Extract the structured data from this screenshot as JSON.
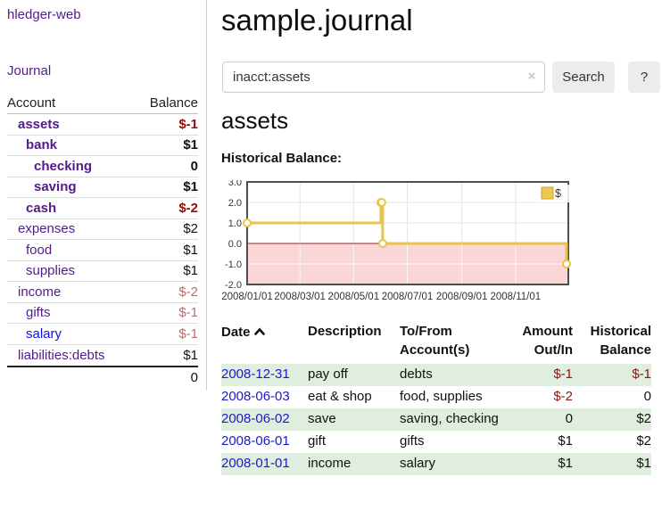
{
  "app": {
    "brand": "hledger-web"
  },
  "sidebar": {
    "journal_link": "Journal",
    "accounts_table": {
      "account_header": "Account",
      "balance_header": "Balance",
      "rows": [
        {
          "name": "assets",
          "indent": 1,
          "bold": true,
          "link_color": "purple",
          "balance": "$-1",
          "balance_style": "negative"
        },
        {
          "name": "bank",
          "indent": 2,
          "bold": true,
          "link_color": "purple",
          "balance": "$1",
          "balance_style": "normal"
        },
        {
          "name": "checking",
          "indent": 3,
          "bold": true,
          "link_color": "purple",
          "balance": "0",
          "balance_style": "normal"
        },
        {
          "name": "saving",
          "indent": 3,
          "bold": true,
          "link_color": "purple",
          "balance": "$1",
          "balance_style": "normal"
        },
        {
          "name": "cash",
          "indent": 2,
          "bold": true,
          "link_color": "purple",
          "balance": "$-2",
          "balance_style": "negative"
        },
        {
          "name": "expenses",
          "indent": 1,
          "bold": false,
          "link_color": "purple",
          "balance": "$2",
          "balance_style": "normal"
        },
        {
          "name": "food",
          "indent": 2,
          "bold": false,
          "link_color": "purple",
          "balance": "$1",
          "balance_style": "normal"
        },
        {
          "name": "supplies",
          "indent": 2,
          "bold": false,
          "link_color": "purple",
          "balance": "$1",
          "balance_style": "normal"
        },
        {
          "name": "income",
          "indent": 1,
          "bold": false,
          "link_color": "purple",
          "balance": "$-2",
          "balance_style": "negative_muted"
        },
        {
          "name": "gifts",
          "indent": 2,
          "bold": false,
          "link_color": "purple",
          "balance": "$-1",
          "balance_style": "negative_muted"
        },
        {
          "name": "salary",
          "indent": 2,
          "bold": false,
          "link_color": "blue",
          "balance": "$-1",
          "balance_style": "negative_muted"
        },
        {
          "name": "liabilities:debts",
          "indent": 1,
          "bold": false,
          "link_color": "purple",
          "balance": "$1",
          "balance_style": "normal"
        }
      ],
      "total": "0"
    }
  },
  "main": {
    "title": "sample.journal",
    "search": {
      "value": "inacct:assets",
      "clear_icon": "×",
      "search_button": "Search",
      "help_button": "?"
    },
    "account_heading": "assets",
    "chart_label": "Historical Balance:",
    "register_table": {
      "columns": {
        "date": "Date",
        "description": "Description",
        "accounts": "To/From Account(s)",
        "amount": "Amount Out/In",
        "balance": "Historical Balance"
      },
      "rows": [
        {
          "date": "2008-12-31",
          "description": "pay off",
          "accounts": "debts",
          "amount": "$-1",
          "amount_negative": true,
          "balance": "$-1",
          "balance_negative": true
        },
        {
          "date": "2008-06-03",
          "description": "eat & shop",
          "accounts": "food, supplies",
          "amount": "$-2",
          "amount_negative": true,
          "balance": "0",
          "balance_negative": false
        },
        {
          "date": "2008-06-02",
          "description": "save",
          "accounts": "saving, checking",
          "amount": "0",
          "amount_negative": false,
          "balance": "$2",
          "balance_negative": false
        },
        {
          "date": "2008-06-01",
          "description": "gift",
          "accounts": "gifts",
          "amount": "$1",
          "amount_negative": false,
          "balance": "$2",
          "balance_negative": false
        },
        {
          "date": "2008-01-01",
          "description": "income",
          "accounts": "salary",
          "amount": "$1",
          "amount_negative": false,
          "balance": "$1",
          "balance_negative": false
        }
      ]
    }
  },
  "chart_data": {
    "type": "line",
    "step": true,
    "title": "Historical Balance:",
    "series": [
      {
        "name": "$",
        "color": "#e9c34c",
        "points": [
          [
            "2008-01-01",
            1
          ],
          [
            "2008-06-01",
            2
          ],
          [
            "2008-06-02",
            2
          ],
          [
            "2008-06-03",
            0
          ],
          [
            "2008-12-31",
            -1
          ]
        ]
      }
    ],
    "x_domain": [
      "2008-01-01",
      "2008-12-31"
    ],
    "x_ticks": [
      "2008/01/01",
      "2008/03/01",
      "2008/05/01",
      "2008/07/01",
      "2008/09/01",
      "2008/11/01"
    ],
    "ylim": [
      -2,
      3
    ],
    "y_ticks": [
      3.0,
      2.0,
      1.0,
      0.0,
      -1.0,
      -2.0
    ],
    "legend": {
      "label": "$",
      "position": "top-right"
    },
    "grid": true,
    "negative_region_color": "#fad6d6",
    "zero_line_color": "#8f2727"
  },
  "colors": {
    "link_purple": "#551a8b",
    "link_blue": "#1a1acd",
    "negative_strong": "#8b0f0f",
    "negative_muted": "#b56e6e",
    "row_stripe_green": "#dfeede",
    "chart_gold": "#e9c34c",
    "chart_negative_area": "#fad6d6"
  }
}
